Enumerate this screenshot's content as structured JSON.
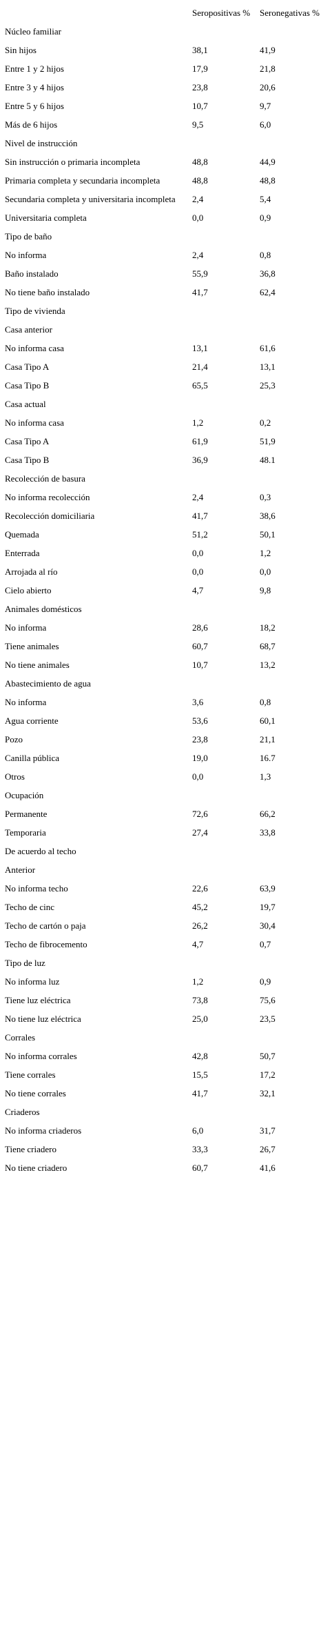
{
  "table": {
    "header": [
      "Seropositivas %",
      "Seronegativas %"
    ],
    "rows": [
      [
        "Núcleo familiar"
      ],
      [
        "Sin hijos",
        "38,1",
        "41,9"
      ],
      [
        "Entre 1 y 2 hijos",
        "17,9",
        "21,8"
      ],
      [
        "Entre 3 y 4 hijos",
        "23,8",
        "20,6"
      ],
      [
        "Entre 5 y 6 hijos",
        "10,7",
        "9,7"
      ],
      [
        "Más de 6 hijos",
        "9,5",
        "6,0"
      ],
      [
        "Nivel de instrucción"
      ],
      [
        "Sin instrucción o primaria incompleta",
        "48,8",
        "44,9"
      ],
      [
        "Primaria completa y secundaria incompleta",
        "48,8",
        "48,8"
      ],
      [
        "Secundaria completa y universitaria incompleta",
        "2,4",
        "5,4"
      ],
      [
        "Universitaria completa",
        "0,0",
        "0,9"
      ],
      [
        "Tipo de baño"
      ],
      [
        "No informa",
        "2,4",
        "0,8"
      ],
      [
        "Baño instalado",
        "55,9",
        "36,8"
      ],
      [
        "No tiene baño instalado",
        "41,7",
        "62,4"
      ],
      [
        "Tipo de vivienda"
      ],
      [
        "Casa anterior"
      ],
      [
        "No informa casa",
        "13,1",
        "61,6"
      ],
      [
        "Casa Tipo A",
        "21,4",
        "13,1"
      ],
      [
        "Casa Tipo B",
        "65,5",
        "25,3"
      ],
      [
        "Casa actual"
      ],
      [
        "No informa casa",
        "1,2",
        "0,2"
      ],
      [
        "Casa Tipo A",
        "61,9",
        "51,9"
      ],
      [
        "Casa Tipo B",
        "36,9",
        "48.1"
      ],
      [
        "Recolección de basura"
      ],
      [
        "No informa recolección",
        "2,4",
        "0,3"
      ],
      [
        "Recolección domiciliaria",
        "41,7",
        "38,6"
      ],
      [
        "Quemada",
        "51,2",
        "50,1"
      ],
      [
        "Enterrada",
        "0,0",
        "1,2"
      ],
      [
        "Arrojada al río",
        "0,0",
        "0,0"
      ],
      [
        "Cielo abierto",
        "4,7",
        "9,8"
      ],
      [
        "Animales domésticos"
      ],
      [
        "No informa",
        "28,6",
        "18,2"
      ],
      [
        "Tiene animales",
        "60,7",
        "68,7"
      ],
      [
        "No tiene animales",
        "10,7",
        "13,2"
      ],
      [
        "Abastecimiento de agua"
      ],
      [
        "No informa",
        "3,6",
        "0,8"
      ],
      [
        "Agua corriente",
        "53,6",
        "60,1"
      ],
      [
        "Pozo",
        "23,8",
        "21,1"
      ],
      [
        "Canilla pública",
        "19,0",
        "16.7"
      ],
      [
        "Otros",
        "0,0",
        "1,3"
      ],
      [
        "Ocupación"
      ],
      [
        "Permanente",
        "72,6",
        "66,2"
      ],
      [
        "Temporaria",
        "27,4",
        "33,8"
      ],
      [
        "De acuerdo al techo"
      ],
      [
        "Anterior"
      ],
      [
        "No informa techo",
        "22,6",
        "63,9"
      ],
      [
        "Techo de cinc",
        "45,2",
        "19,7"
      ],
      [
        "Techo de cartón o paja",
        "26,2",
        "30,4"
      ],
      [
        "Techo de fibrocemento",
        "4,7",
        "0,7"
      ],
      [
        "Tipo de luz"
      ],
      [
        "No informa luz",
        "1,2",
        "0,9"
      ],
      [
        "Tiene luz eléctrica",
        "73,8",
        "75,6"
      ],
      [
        "No tiene luz eléctrica",
        "25,0",
        "23,5"
      ],
      [
        "Corrales"
      ],
      [
        "No informa corrales",
        "42,8",
        "50,7"
      ],
      [
        "Tiene corrales",
        "15,5",
        "17,2"
      ],
      [
        "No tiene corrales",
        "41,7",
        "32,1"
      ],
      [
        "Criaderos"
      ],
      [
        "No informa criaderos",
        "6,0",
        "31,7"
      ],
      [
        "Tiene criadero",
        "33,3",
        "26,7"
      ],
      [
        "No tiene criadero",
        "60,7",
        "41,6"
      ]
    ]
  }
}
